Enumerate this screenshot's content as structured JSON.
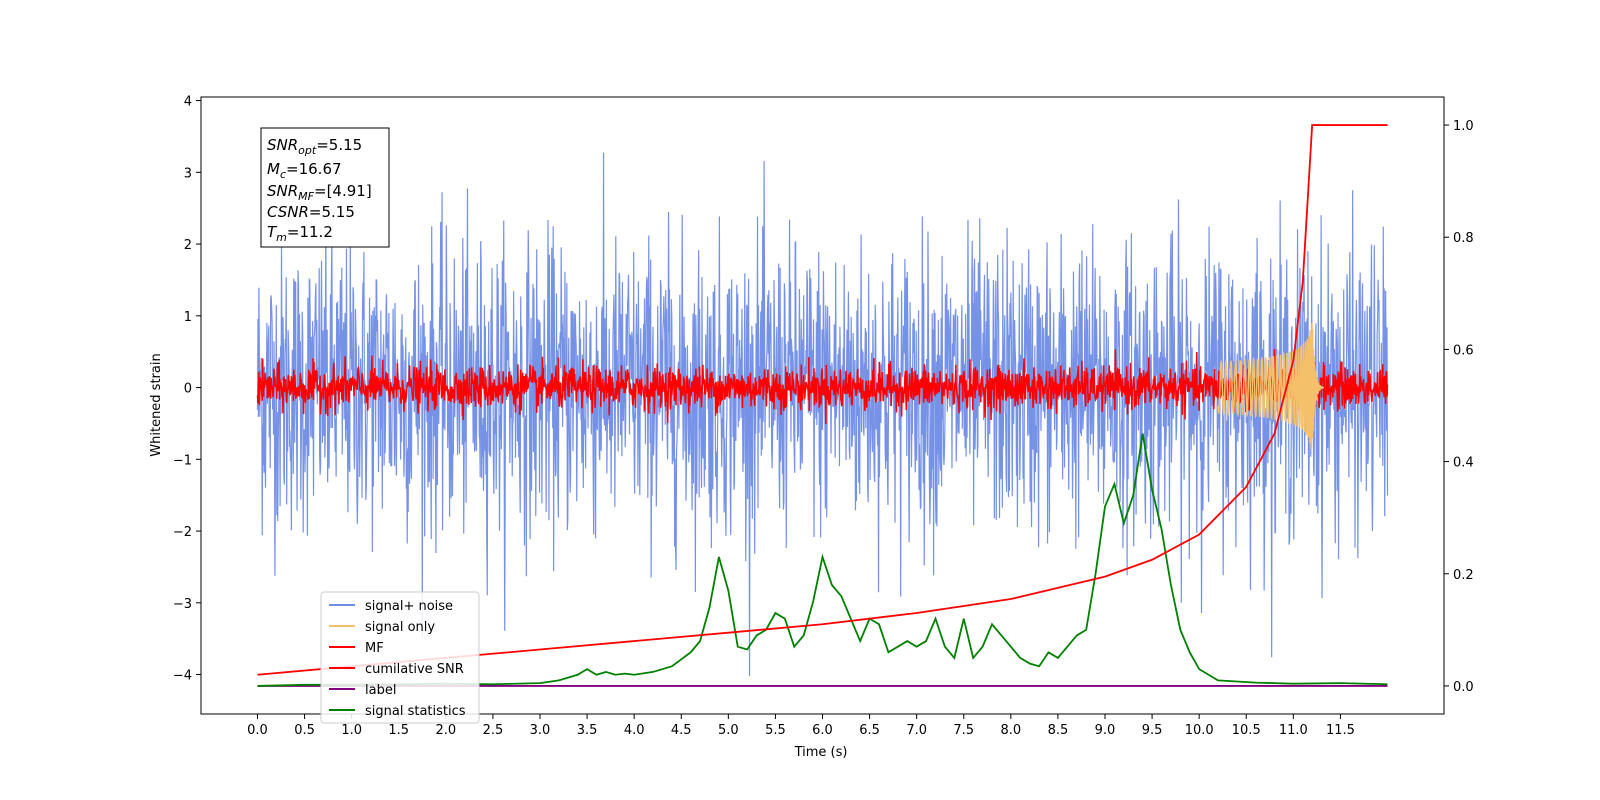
{
  "chart_data": {
    "type": "line",
    "xlabel": "Time (s)",
    "ylabel": "Whitened strain",
    "xlim": [
      -0.6,
      12.6
    ],
    "ylim": [
      -4.55,
      4.05
    ],
    "y2lim": [
      -0.05,
      1.05
    ],
    "x_ticks": [
      "0.0",
      "0.5",
      "1.0",
      "1.5",
      "2.0",
      "2.5",
      "3.0",
      "3.5",
      "4.0",
      "4.5",
      "5.0",
      "5.5",
      "6.0",
      "6.5",
      "7.0",
      "7.5",
      "8.0",
      "8.5",
      "9.0",
      "9.5",
      "10.0",
      "10.5",
      "11.0",
      "11.5"
    ],
    "y_ticks": [
      "4",
      "3",
      "2",
      "1",
      "0",
      "−1",
      "−2",
      "−3",
      "−4"
    ],
    "y2_ticks": [
      "1.0",
      "0.8",
      "0.6",
      "0.4",
      "0.2",
      "0.0"
    ],
    "annotation": {
      "snr_opt": {
        "base": "SNR",
        "sub": "opt",
        "value": "=5.15"
      },
      "mc": {
        "base": "M",
        "sub": "c",
        "value": "=16.67"
      },
      "snr_mf": {
        "base": "SNR",
        "sub": "MF",
        "value": "=[4.91]"
      },
      "csnr": {
        "base": "CSNR",
        "sub": "",
        "value": "=5.15"
      },
      "tm": {
        "base": "T",
        "sub": "m",
        "value": "=11.2"
      }
    },
    "legend": {
      "placement": "lower-left",
      "entries": [
        "signal+ noise",
        "signal only",
        "MF",
        "cumilative SNR",
        "label",
        "signal statistics"
      ]
    },
    "series": [
      {
        "name": "signal+ noise",
        "axis": "left",
        "color": "#6f8ce6",
        "x_range": [
          0,
          12
        ],
        "amplitude_sd": 1.0,
        "samples": 2400
      },
      {
        "name": "signal only",
        "axis": "left",
        "color": "#f5c06a",
        "chirp_start": 10.2,
        "merger": 11.2,
        "peak_amplitude": 1.05
      },
      {
        "name": "MF",
        "axis": "left",
        "color": "#ff0000",
        "x_range": [
          0,
          12
        ],
        "amplitude_sd": 0.15,
        "samples": 2400
      },
      {
        "name": "cumilative SNR",
        "axis": "right",
        "color": "#ff0000",
        "x": [
          0,
          1,
          2,
          3,
          4,
          5,
          6,
          7,
          8,
          9,
          9.5,
          10,
          10.5,
          10.8,
          11.0,
          11.1,
          11.2,
          11.3,
          12
        ],
        "y": [
          0.02,
          0.035,
          0.05,
          0.065,
          0.08,
          0.095,
          0.11,
          0.13,
          0.155,
          0.195,
          0.225,
          0.27,
          0.355,
          0.45,
          0.58,
          0.72,
          1.0,
          1.0,
          1.0
        ]
      },
      {
        "name": "label",
        "axis": "right",
        "color": "#800080",
        "x": [
          0,
          12
        ],
        "y": [
          0.0,
          0.0
        ]
      },
      {
        "name": "signal statistics",
        "axis": "right",
        "color": "#008000",
        "x": [
          0,
          0.5,
          1,
          1.5,
          2,
          2.5,
          3,
          3.2,
          3.4,
          3.5,
          3.6,
          3.7,
          3.8,
          3.9,
          4,
          4.2,
          4.4,
          4.6,
          4.7,
          4.8,
          4.9,
          5.0,
          5.1,
          5.2,
          5.3,
          5.4,
          5.5,
          5.6,
          5.7,
          5.8,
          5.9,
          6.0,
          6.1,
          6.2,
          6.3,
          6.4,
          6.5,
          6.6,
          6.7,
          6.8,
          6.9,
          7.0,
          7.1,
          7.2,
          7.3,
          7.4,
          7.5,
          7.6,
          7.7,
          7.8,
          7.9,
          8.0,
          8.1,
          8.2,
          8.3,
          8.4,
          8.5,
          8.6,
          8.7,
          8.8,
          8.9,
          9.0,
          9.1,
          9.2,
          9.3,
          9.4,
          9.5,
          9.6,
          9.7,
          9.8,
          9.9,
          10.0,
          10.2,
          10.4,
          10.6,
          11,
          11.5,
          12
        ],
        "y": [
          0.0,
          0.002,
          0.002,
          0.003,
          0.004,
          0.003,
          0.005,
          0.01,
          0.02,
          0.03,
          0.02,
          0.025,
          0.02,
          0.022,
          0.02,
          0.025,
          0.035,
          0.06,
          0.08,
          0.14,
          0.23,
          0.17,
          0.07,
          0.065,
          0.09,
          0.1,
          0.13,
          0.12,
          0.07,
          0.09,
          0.15,
          0.23,
          0.18,
          0.16,
          0.12,
          0.08,
          0.12,
          0.11,
          0.06,
          0.07,
          0.08,
          0.07,
          0.08,
          0.12,
          0.07,
          0.05,
          0.12,
          0.05,
          0.07,
          0.11,
          0.09,
          0.07,
          0.05,
          0.04,
          0.035,
          0.06,
          0.05,
          0.07,
          0.09,
          0.1,
          0.2,
          0.32,
          0.36,
          0.29,
          0.34,
          0.45,
          0.35,
          0.28,
          0.18,
          0.1,
          0.06,
          0.03,
          0.01,
          0.008,
          0.006,
          0.004,
          0.005,
          0.003
        ]
      }
    ]
  }
}
